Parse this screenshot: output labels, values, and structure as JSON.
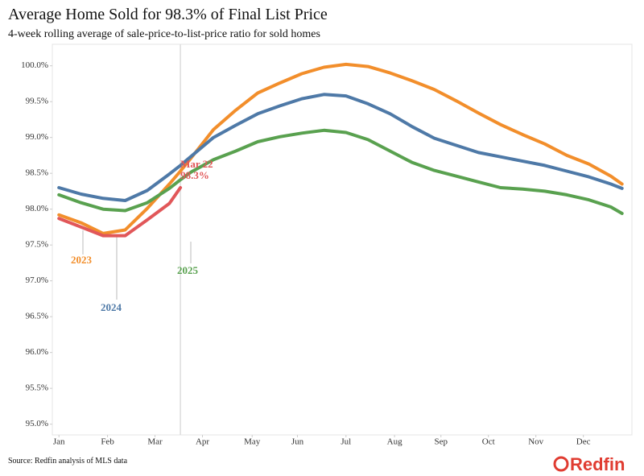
{
  "chart_data": {
    "type": "line",
    "title": "Average Home Sold for 98.3% of Final List Price",
    "subtitle": "4-week rolling average of sale-price-to-list-price ratio for sold homes",
    "source": "Source: Redfin analysis of MLS data",
    "logo": "Redfin",
    "x": [
      1,
      3,
      5,
      7,
      9,
      11,
      12,
      13,
      15,
      17,
      19,
      21,
      23,
      25,
      27,
      29,
      31,
      33,
      35,
      37,
      39,
      41,
      43,
      45,
      47,
      49,
      51,
      52
    ],
    "xlim": [
      0.4,
      52.9
    ],
    "xticks": [
      {
        "value": 1,
        "label": "Jan"
      },
      {
        "value": 5.4,
        "label": "Feb"
      },
      {
        "value": 9.7,
        "label": "Mar"
      },
      {
        "value": 14,
        "label": "Apr"
      },
      {
        "value": 18.5,
        "label": "May"
      },
      {
        "value": 22.6,
        "label": "Jun"
      },
      {
        "value": 27,
        "label": "Jul"
      },
      {
        "value": 31.4,
        "label": "Aug"
      },
      {
        "value": 35.6,
        "label": "Sep"
      },
      {
        "value": 39.9,
        "label": "Oct"
      },
      {
        "value": 44.2,
        "label": "Nov"
      },
      {
        "value": 48.5,
        "label": "Dec"
      }
    ],
    "ylim": [
      94.85,
      100.3
    ],
    "yticks": [
      {
        "value": 95,
        "label": "95.0%"
      },
      {
        "value": 95.5,
        "label": "95.5%"
      },
      {
        "value": 96,
        "label": "96.0%"
      },
      {
        "value": 96.5,
        "label": "96.5%"
      },
      {
        "value": 97,
        "label": "97.0%"
      },
      {
        "value": 97.5,
        "label": "97.5%"
      },
      {
        "value": 98,
        "label": "98.0%"
      },
      {
        "value": 98.5,
        "label": "98.5%"
      },
      {
        "value": 99,
        "label": "99.0%"
      },
      {
        "value": 99.5,
        "label": "99.5%"
      },
      {
        "value": 100,
        "label": "100.0%"
      }
    ],
    "series": [
      {
        "name": "2023",
        "color": "#f28e2b",
        "values": [
          97.92,
          97.81,
          97.66,
          97.71,
          98.01,
          98.35,
          98.53,
          98.72,
          99.11,
          99.38,
          99.62,
          99.76,
          99.89,
          99.98,
          100.02,
          99.99,
          99.9,
          99.79,
          99.67,
          99.51,
          99.34,
          99.18,
          99.04,
          98.91,
          98.75,
          98.63,
          98.46,
          98.35
        ]
      },
      {
        "name": "2024",
        "color": "#4e79a7",
        "values": [
          98.3,
          98.21,
          98.15,
          98.12,
          98.26,
          98.49,
          98.61,
          98.74,
          99.0,
          99.17,
          99.33,
          99.44,
          99.54,
          99.6,
          99.58,
          99.47,
          99.33,
          99.15,
          98.99,
          98.89,
          98.79,
          98.73,
          98.67,
          98.61,
          98.53,
          98.45,
          98.35,
          98.29
        ]
      },
      {
        "name": "2025",
        "color": "#59a14f",
        "values": [
          98.2,
          98.09,
          98.0,
          97.98,
          98.09,
          98.29,
          98.41,
          98.52,
          98.69,
          98.81,
          98.94,
          99.01,
          99.06,
          99.1,
          99.07,
          98.97,
          98.81,
          98.65,
          98.54,
          98.46,
          98.38,
          98.3,
          98.28,
          98.25,
          98.2,
          98.13,
          98.03,
          97.94
        ]
      },
      {
        "color": "#e15759",
        "values": [
          97.87,
          97.75,
          97.63,
          97.63,
          97.85,
          98.08,
          98.3,
          null,
          null,
          null,
          null,
          null,
          null,
          null,
          null,
          null,
          null,
          null,
          null,
          null,
          null,
          null,
          null,
          null,
          null,
          null,
          null,
          null
        ]
      }
    ],
    "annotation": {
      "x": 12,
      "lines": [
        "Mar 22",
        "98.3%"
      ]
    }
  }
}
